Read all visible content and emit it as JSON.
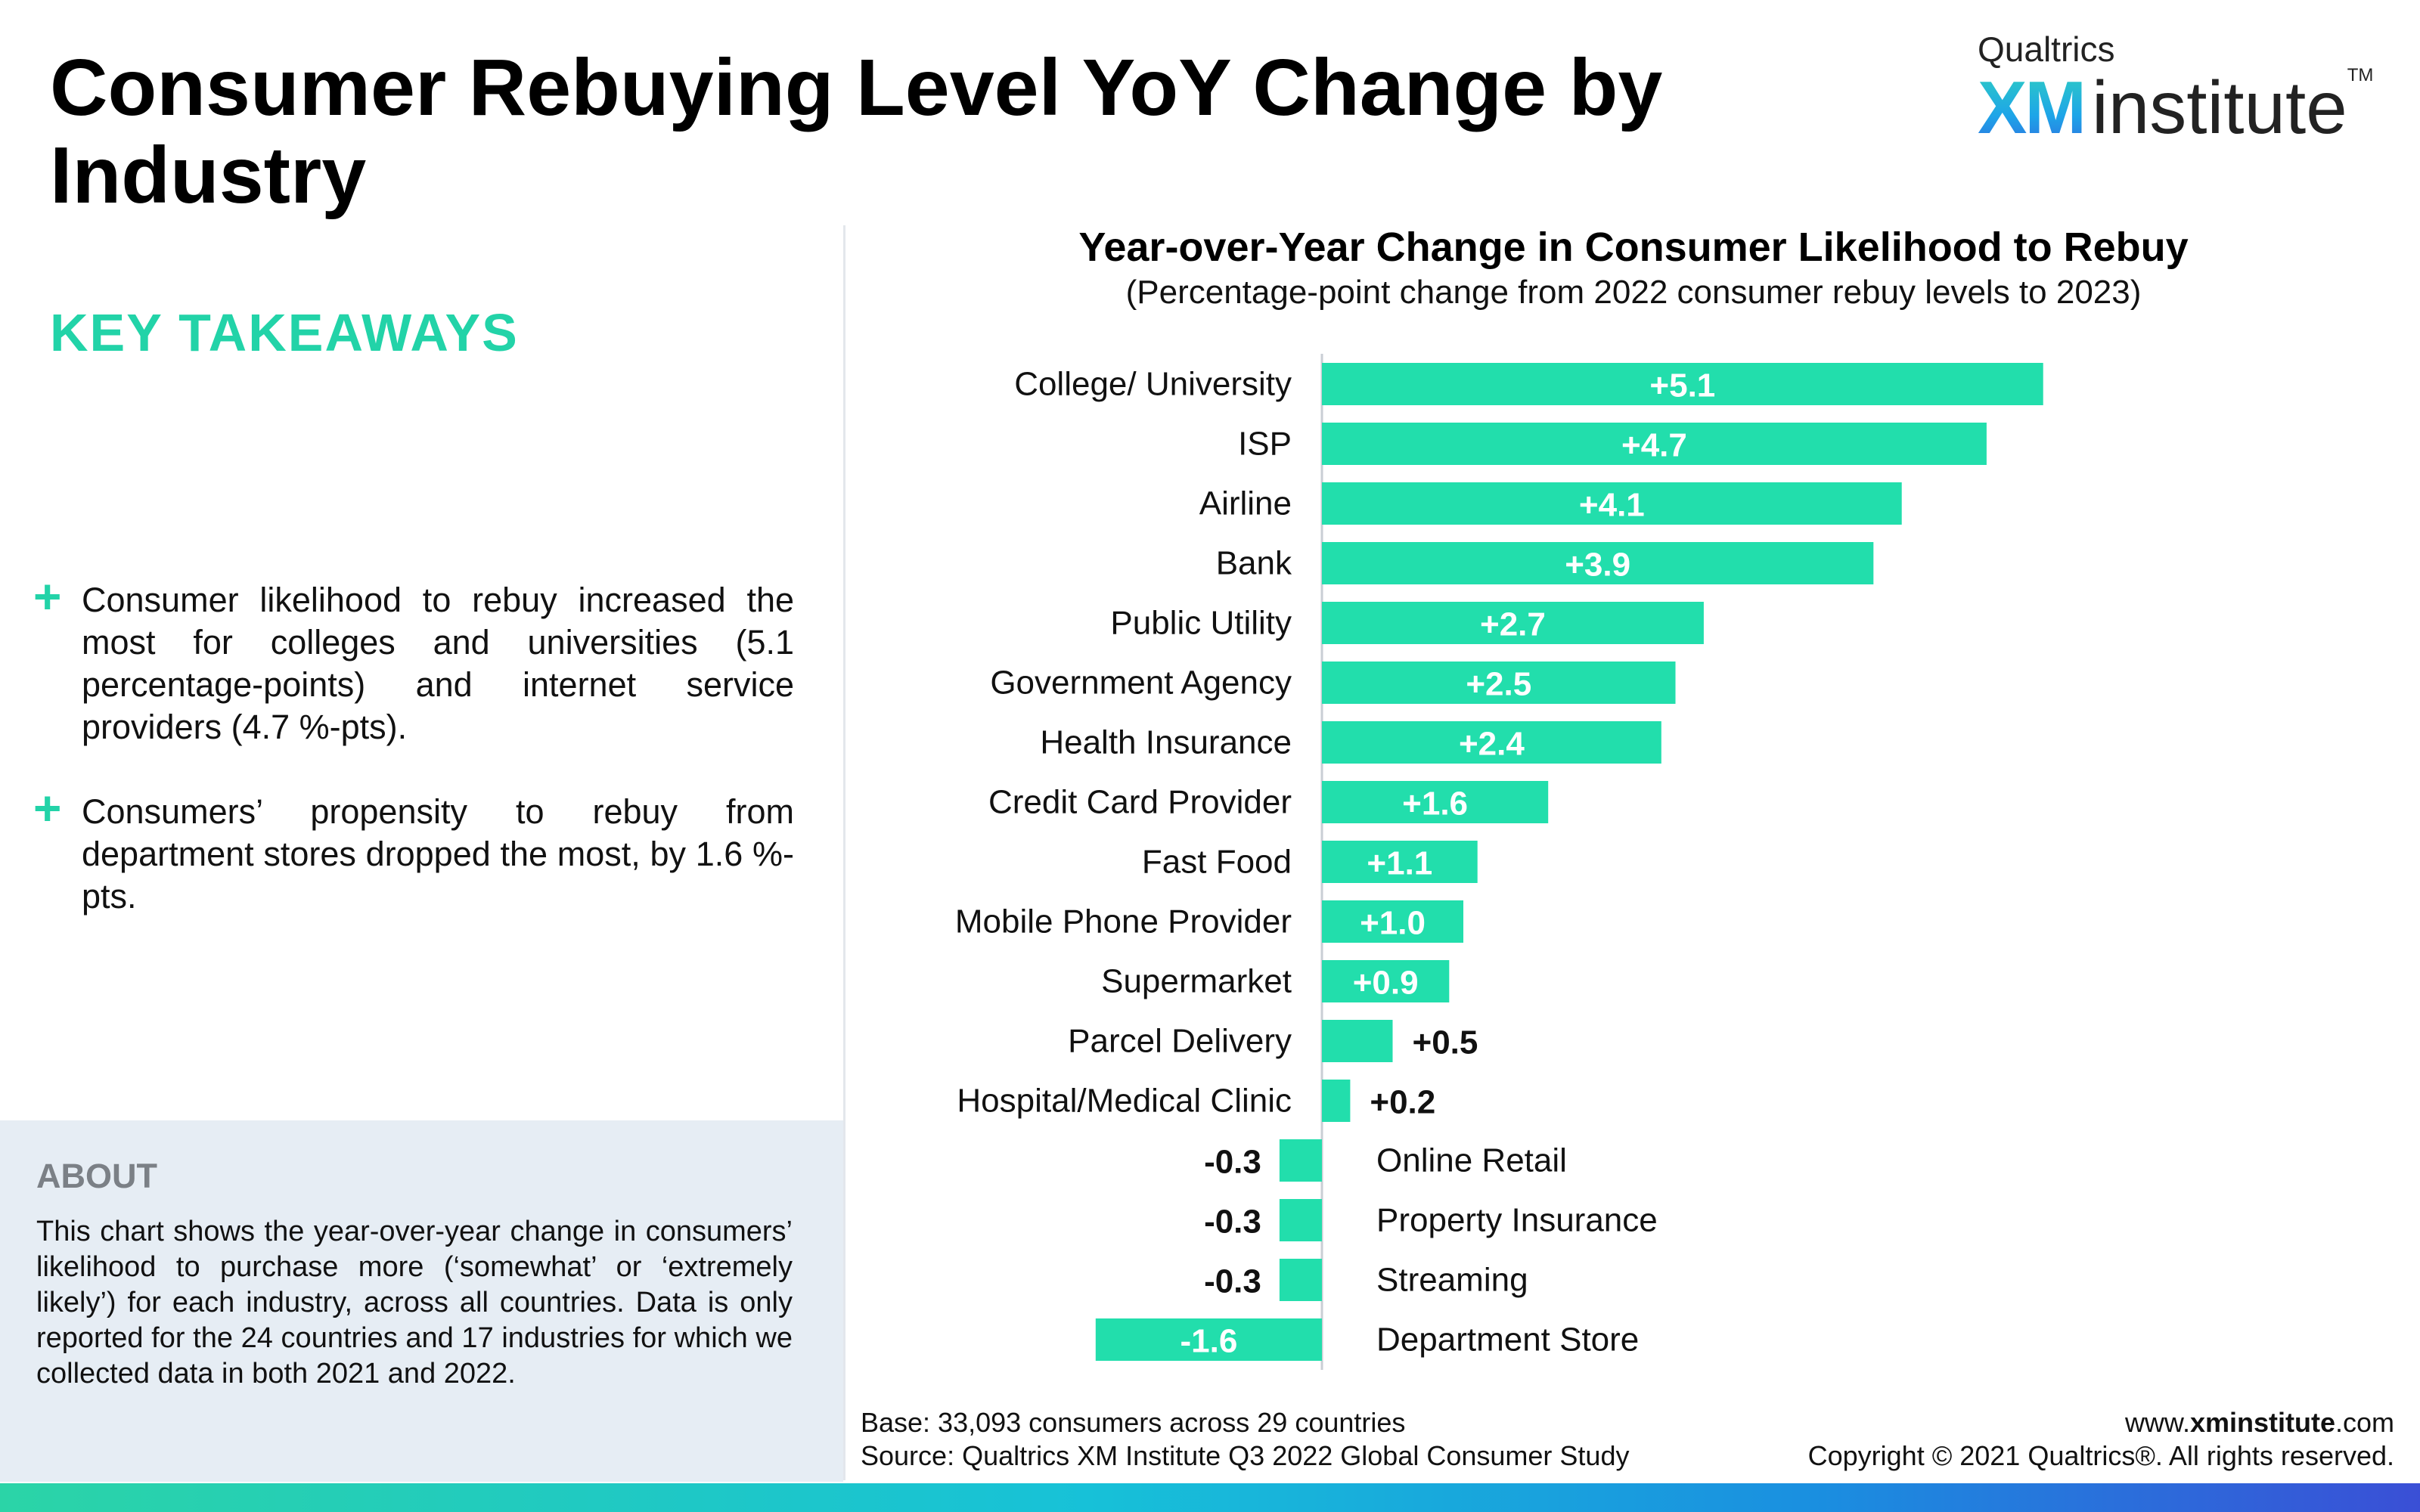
{
  "header": {
    "title": "Consumer Rebuying Level YoY Change by Industry"
  },
  "logo": {
    "brand_top": "Qualtrics",
    "brand_xm": "XM",
    "brand_institute": "institute",
    "brand_tm": "TM"
  },
  "takeaways": {
    "heading": "KEY TAKEAWAYS",
    "items": [
      {
        "marker": "+",
        "text": "Consumer likelihood to rebuy increased the most for colleges and universities (5.1 percentage-points) and internet service providers (4.7 %-pts)."
      },
      {
        "marker": "+",
        "text": "Consumers’ propensity to rebuy from department stores dropped the most, by 1.6 %-pts."
      }
    ]
  },
  "about": {
    "heading": "ABOUT",
    "text": "This chart shows the year-over-year change in consumers’ likelihood to purchase more (‘somewhat’ or ‘extremely likely’) for each industry, across all countries. Data is only reported for the 24 countries and 17 industries for which we collected data in both 2021 and 2022."
  },
  "chart_data": {
    "type": "bar",
    "orientation": "horizontal",
    "title": "Year-over-Year Change in Consumer Likelihood to Rebuy",
    "subtitle": "(Percentage-point change from 2022 consumer rebuy levels to 2023)",
    "categories": [
      "College/ University",
      "ISP",
      "Airline",
      "Bank",
      "Public Utility",
      "Government Agency",
      "Health Insurance",
      "Credit Card Provider",
      "Fast Food",
      "Mobile Phone Provider",
      "Supermarket",
      "Parcel Delivery",
      "Hospital/Medical Clinic",
      "Online Retail",
      "Property Insurance",
      "Streaming",
      "Department Store"
    ],
    "values": [
      5.1,
      4.7,
      4.1,
      3.9,
      2.7,
      2.5,
      2.4,
      1.6,
      1.1,
      1.0,
      0.9,
      0.5,
      0.2,
      -0.3,
      -0.3,
      -0.3,
      -1.6
    ],
    "labels": [
      "+5.1",
      "+4.7",
      "+4.1",
      "+3.9",
      "+2.7",
      "+2.5",
      "+2.4",
      "+1.6",
      "+1.1",
      "+1.0",
      "+0.9",
      "+0.5",
      "+0.2",
      "-0.3",
      "-0.3",
      "-0.3",
      "-1.6"
    ],
    "xlim": [
      -1.6,
      5.1
    ],
    "grid": false,
    "legend": "none",
    "bar_color": "#22deac"
  },
  "footer": {
    "base": "Base: 33,093 consumers across 29 countries",
    "source": "Source: Qualtrics XM Institute Q3 2022 Global Consumer Study",
    "site_prefix": "www.",
    "site_bold": "xminstitute",
    "site_suffix": ".com",
    "copyright": "Copyright © 2021 Qualtrics®. All rights reserved."
  }
}
